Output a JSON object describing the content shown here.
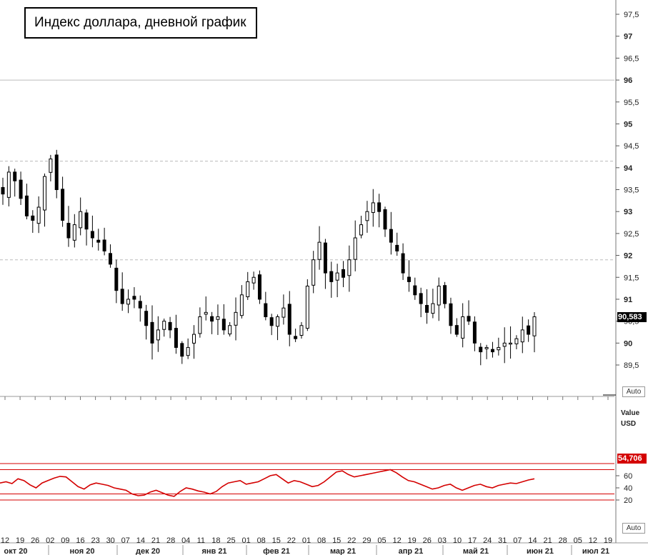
{
  "title": "Индекс доллара, дневной график",
  "price_badge": "90,583",
  "rsi_badge": "54,706",
  "rsi_label_1": "Value",
  "rsi_label_2": "USD",
  "auto_label": "Auto",
  "colors": {
    "candle": "#000000",
    "rsi": "#d40000",
    "band": "#d40000",
    "grid": "#cccccc"
  },
  "chart_data": [
    {
      "type": "candlestick",
      "title": "Индекс доллара, дневной график",
      "ylim": [
        89.0,
        97.75
      ],
      "y_ticks": [
        "89,5",
        "90",
        "90,5",
        "91",
        "91,5",
        "92",
        "92,5",
        "93",
        "93,5",
        "94",
        "94,5",
        "95",
        "95,5",
        "96",
        "96,5",
        "97",
        "97,5"
      ],
      "horizontal_lines": [
        96.0,
        94.15,
        91.9
      ],
      "last_value": 90.583,
      "x_day_ticks": [
        "12",
        "19",
        "26",
        "02",
        "09",
        "16",
        "23",
        "30",
        "07",
        "14",
        "21",
        "28",
        "04",
        "11",
        "18",
        "25",
        "01",
        "08",
        "15",
        "22",
        "01",
        "08",
        "15",
        "22",
        "29",
        "05",
        "12",
        "19",
        "26",
        "03",
        "10",
        "17",
        "24",
        "31",
        "07",
        "14",
        "21",
        "28",
        "05",
        "12",
        "19"
      ],
      "x_month_labels": [
        "окт 20",
        "ноя 20",
        "дек 20",
        "янв 21",
        "фев 21",
        "мар 21",
        "апр 21",
        "май 21",
        "июн 21",
        "июл 21"
      ],
      "close_path": [
        93.4,
        93.9,
        93.7,
        93.3,
        92.9,
        92.8,
        93.1,
        93.8,
        94.2,
        93.5,
        92.8,
        92.4,
        92.7,
        93.0,
        92.6,
        92.4,
        92.3,
        92.1,
        91.8,
        91.2,
        90.9,
        91.0,
        91.0,
        90.8,
        90.4,
        90.0,
        90.3,
        90.5,
        90.3,
        89.9,
        89.7,
        89.9,
        90.2,
        90.6,
        90.7,
        90.5,
        90.6,
        90.3,
        90.4,
        90.7,
        91.1,
        91.4,
        91.5,
        91.0,
        90.6,
        90.4,
        90.6,
        90.8,
        90.2,
        90.1,
        90.4,
        91.3,
        91.9,
        92.3,
        91.6,
        91.4,
        91.6,
        91.5,
        91.9,
        92.4,
        92.7,
        93.0,
        93.2,
        93.0,
        92.6,
        92.3,
        92.1,
        91.6,
        91.4,
        91.1,
        90.9,
        90.7,
        90.9,
        91.3,
        90.9,
        90.4,
        90.2,
        90.6,
        90.5,
        90.0,
        89.8,
        89.9,
        89.8,
        89.9,
        90.0,
        90.0,
        90.1,
        90.3,
        90.2,
        90.6
      ]
    },
    {
      "type": "line",
      "series": [
        {
          "name": "",
          "note": "RSI"
        }
      ],
      "ylim": [
        10,
        90
      ],
      "y_ticks": [
        "20",
        "40",
        "60"
      ],
      "bands": [
        20,
        30,
        70,
        80
      ],
      "last_value": 54.706,
      "values": [
        48,
        50,
        47,
        55,
        52,
        45,
        40,
        48,
        52,
        56,
        59,
        58,
        50,
        42,
        38,
        45,
        48,
        46,
        44,
        40,
        38,
        36,
        30,
        27,
        28,
        33,
        36,
        32,
        28,
        26,
        34,
        40,
        38,
        35,
        33,
        30,
        34,
        42,
        48,
        50,
        52,
        46,
        48,
        50,
        55,
        60,
        62,
        55,
        48,
        52,
        50,
        46,
        42,
        44,
        50,
        58,
        66,
        68,
        62,
        58,
        60,
        62,
        64,
        66,
        68,
        70,
        65,
        58,
        52,
        50,
        46,
        42,
        38,
        40,
        44,
        46,
        40,
        36,
        40,
        44,
        46,
        42,
        40,
        44,
        46,
        48,
        47,
        50,
        53,
        55
      ]
    }
  ]
}
